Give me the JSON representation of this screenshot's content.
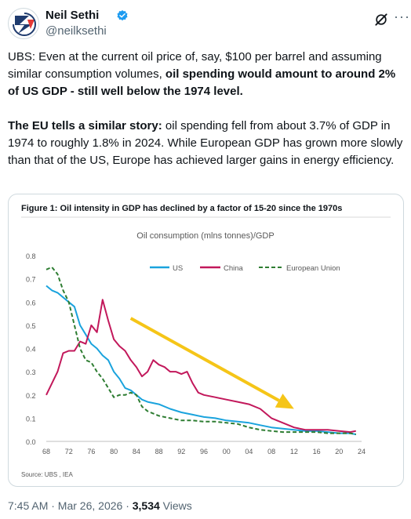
{
  "tweet": {
    "author_name": "Neil Sethi",
    "handle": "@neilksethi",
    "paragraph1_a": "UBS: Even at the current oil price of, say, $100 per barrel and assuming similar consumption volumes, ",
    "paragraph1_b": "oil spending would amount to around 2% of US GDP - still well below the 1974 level.",
    "paragraph2_a": "The EU tells a similar story:",
    "paragraph2_b": " oil spending fell from about 3.7% of GDP in 1974 to roughly 1.8% in 2024. While European GDP has grown more slowly than that of the US, Europe has achieved larger gains in energy efficiency.",
    "time": "7:45 AM · Mar 26, 2026 · ",
    "views_count": "3,534",
    "views_label": " Views"
  },
  "icons": {
    "avatar": "logo-avatar-icon",
    "verified": "verified-badge-icon",
    "grok": "grok-icon",
    "more": "more-icon"
  },
  "colors": {
    "us": "#1aa3dd",
    "china": "#c2185b",
    "eu": "#2e7d32",
    "arrow": "#f5c518",
    "verified": "#1d9bf0"
  },
  "chart_data": {
    "type": "line",
    "figure_title": "Figure 1: Oil intensity in GDP has declined by a factor of 15-20 since the 1970s",
    "title": "Oil consumption (mlns tonnes)/GDP",
    "source": "Source: UBS , IEA",
    "xlim": [
      1968,
      2024
    ],
    "ylim": [
      0,
      0.8
    ],
    "yticks": [
      "0.0",
      "0.1",
      "0.2",
      "0.3",
      "0.4",
      "0.5",
      "0.6",
      "0.7",
      "0.8"
    ],
    "xticks": [
      "68",
      "72",
      "76",
      "80",
      "84",
      "88",
      "92",
      "96",
      "00",
      "04",
      "08",
      "12",
      "16",
      "20",
      "24"
    ],
    "legend_position": "top-right",
    "grid": false,
    "series": [
      {
        "name": "US",
        "style": "solid",
        "x": [
          1968,
          1969,
          1970,
          1971,
          1972,
          1973,
          1974,
          1975,
          1976,
          1977,
          1978,
          1979,
          1980,
          1981,
          1982,
          1983,
          1984,
          1985,
          1986,
          1988,
          1990,
          1992,
          1994,
          1996,
          1998,
          2000,
          2002,
          2004,
          2006,
          2008,
          2010,
          2012,
          2014,
          2016,
          2018,
          2020,
          2022,
          2023
        ],
        "y": [
          0.67,
          0.65,
          0.64,
          0.62,
          0.6,
          0.58,
          0.5,
          0.46,
          0.42,
          0.4,
          0.37,
          0.35,
          0.3,
          0.27,
          0.23,
          0.22,
          0.2,
          0.18,
          0.17,
          0.16,
          0.14,
          0.125,
          0.115,
          0.105,
          0.1,
          0.09,
          0.085,
          0.08,
          0.07,
          0.06,
          0.055,
          0.05,
          0.045,
          0.045,
          0.04,
          0.035,
          0.035,
          0.03
        ]
      },
      {
        "name": "China",
        "style": "solid",
        "x": [
          1968,
          1969,
          1970,
          1971,
          1972,
          1973,
          1974,
          1975,
          1976,
          1977,
          1978,
          1979,
          1980,
          1981,
          1982,
          1983,
          1984,
          1985,
          1986,
          1987,
          1988,
          1989,
          1990,
          1991,
          1992,
          1993,
          1994,
          1995,
          1996,
          1998,
          2000,
          2002,
          2004,
          2006,
          2008,
          2010,
          2012,
          2014,
          2016,
          2018,
          2020,
          2022,
          2023
        ],
        "y": [
          0.2,
          0.25,
          0.3,
          0.38,
          0.39,
          0.39,
          0.43,
          0.42,
          0.5,
          0.47,
          0.61,
          0.52,
          0.44,
          0.41,
          0.39,
          0.35,
          0.32,
          0.28,
          0.3,
          0.35,
          0.33,
          0.32,
          0.3,
          0.3,
          0.29,
          0.3,
          0.25,
          0.21,
          0.2,
          0.19,
          0.18,
          0.17,
          0.16,
          0.14,
          0.1,
          0.08,
          0.06,
          0.05,
          0.05,
          0.05,
          0.045,
          0.04,
          0.045
        ]
      },
      {
        "name": "European Union",
        "style": "dashed",
        "x": [
          1968,
          1969,
          1970,
          1971,
          1972,
          1973,
          1974,
          1975,
          1976,
          1977,
          1978,
          1979,
          1980,
          1981,
          1982,
          1983,
          1984,
          1985,
          1986,
          1988,
          1990,
          1992,
          1994,
          1996,
          1998,
          2000,
          2002,
          2004,
          2006,
          2008,
          2010,
          2012,
          2014,
          2016,
          2018,
          2020,
          2022,
          2023
        ],
        "y": [
          0.74,
          0.75,
          0.72,
          0.65,
          0.6,
          0.5,
          0.4,
          0.35,
          0.34,
          0.3,
          0.27,
          0.23,
          0.19,
          0.2,
          0.2,
          0.21,
          0.2,
          0.15,
          0.13,
          0.11,
          0.1,
          0.09,
          0.09,
          0.085,
          0.085,
          0.08,
          0.075,
          0.06,
          0.05,
          0.045,
          0.04,
          0.04,
          0.04,
          0.04,
          0.035,
          0.035,
          0.035,
          0.03
        ]
      }
    ],
    "annotation": {
      "type": "arrow",
      "from": [
        1983,
        0.53
      ],
      "to": [
        2012,
        0.14
      ]
    }
  }
}
